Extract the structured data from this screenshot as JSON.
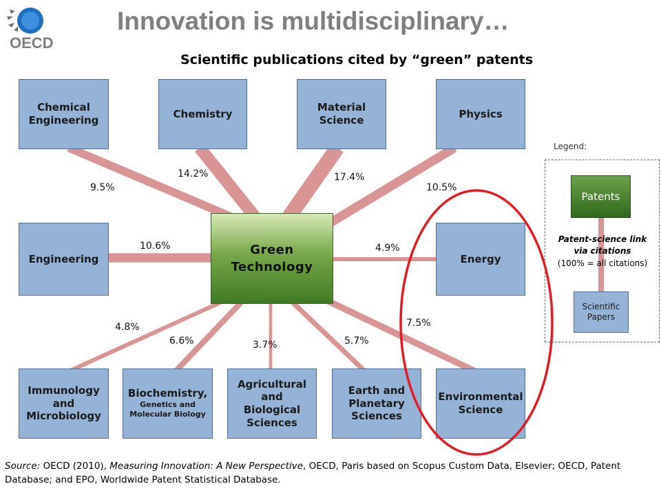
{
  "header": {
    "title": "Innovation is multidisciplinary…",
    "logo_text": "OECD",
    "subtitle": "Scientific publications cited by “green” patents"
  },
  "center_node": {
    "line1": "Green",
    "line2": "Technology"
  },
  "fields": [
    {
      "label": "Chemical Engineering",
      "value": "9.5%"
    },
    {
      "label": "Chemistry",
      "value": "14.2%"
    },
    {
      "label": "Material Science",
      "value": "17.4%"
    },
    {
      "label": "Physics",
      "value": "10.5%"
    },
    {
      "label": "Engineering",
      "value": "10.6%"
    },
    {
      "label": "Energy",
      "value": "4.9%"
    },
    {
      "label": "Immunology and Microbiology",
      "value": "4.8%"
    },
    {
      "label": "Biochemistry,",
      "sublabel": "Genetics and Molecular Biology",
      "value": "6.6%"
    },
    {
      "label": "Agricultural and Biological Sciences",
      "value": "3.7%"
    },
    {
      "label": "Earth and Planetary Sciences",
      "value": "5.7%"
    },
    {
      "label": "Environmental Science",
      "value": "7.5%"
    }
  ],
  "legend": {
    "title": "Legend:",
    "patents": "Patents",
    "link_line1": "Patent-science link",
    "link_line2": "via citations",
    "link_line3": "(100% = all citations)",
    "papers": "Scientific Papers"
  },
  "source": {
    "prefix": "Source:",
    "text1": " OECD (2010), ",
    "book": "Measuring Innovation: A New Perspective",
    "text2": ", OECD, Paris based on Scopus Custom Data, Elsevier; OECD, Patent Database; and EPO, Worldwide Patent Statistical Database."
  },
  "colors": {
    "link": "#d99594",
    "box_fill": "#95b3d7",
    "highlight_ring": "#e31b23",
    "title_gray": "#7f7f7f"
  }
}
